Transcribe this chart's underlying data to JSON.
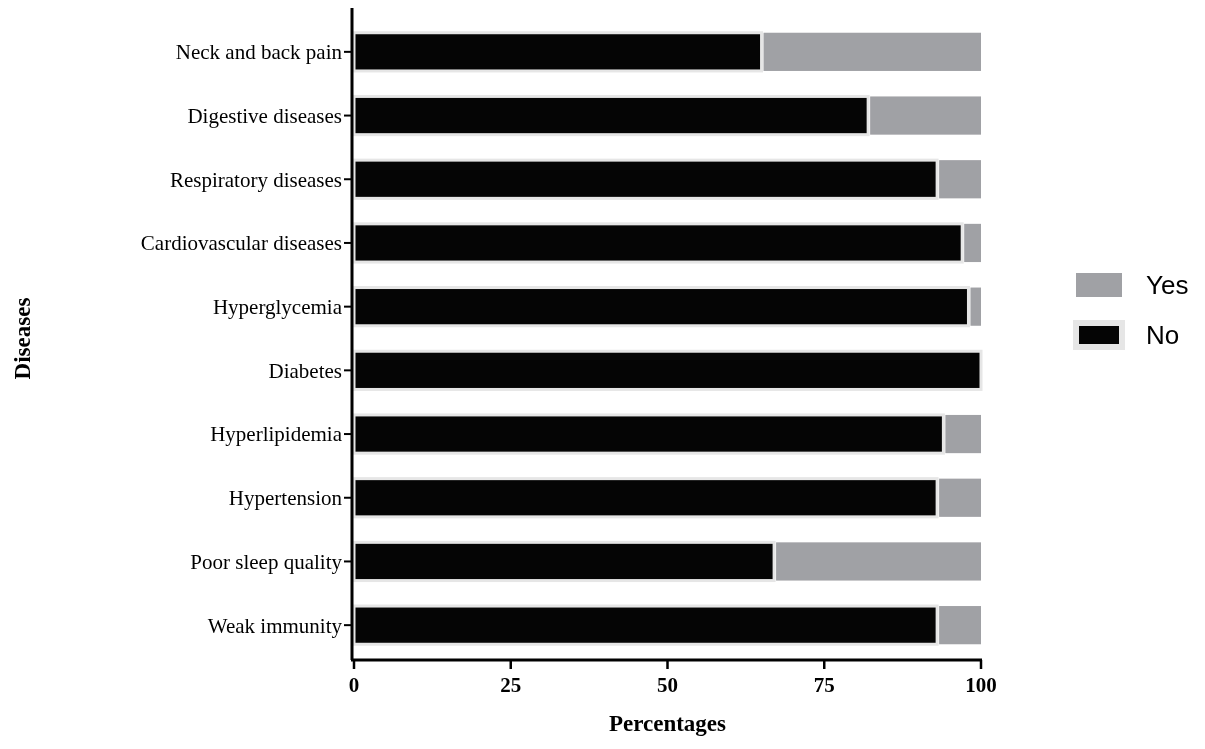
{
  "chart_data": {
    "type": "bar",
    "orientation": "horizontal",
    "stacked": true,
    "xlabel": "Percentages",
    "ylabel": "Diseases",
    "categories": [
      "Neck and back pain",
      "Digestive diseases",
      "Respiratory diseases",
      "Cardiovascular diseases",
      "Hyperglycemia",
      "Diabetes",
      "Hyperlipidemia",
      "Hypertension",
      "Poor sleep quality",
      "Weak immunity"
    ],
    "series": [
      {
        "name": "No",
        "color": "#050505",
        "values": [
          65,
          82,
          93,
          97,
          98,
          100,
          94,
          93,
          67,
          93
        ]
      },
      {
        "name": "Yes",
        "color": "#a0a1a5",
        "values": [
          35,
          18,
          7,
          3,
          2,
          0,
          6,
          7,
          33,
          7
        ]
      }
    ],
    "xlim": [
      0,
      100
    ],
    "xticks": [
      0,
      25,
      50,
      75,
      100
    ],
    "legend": "right",
    "grid": false
  }
}
